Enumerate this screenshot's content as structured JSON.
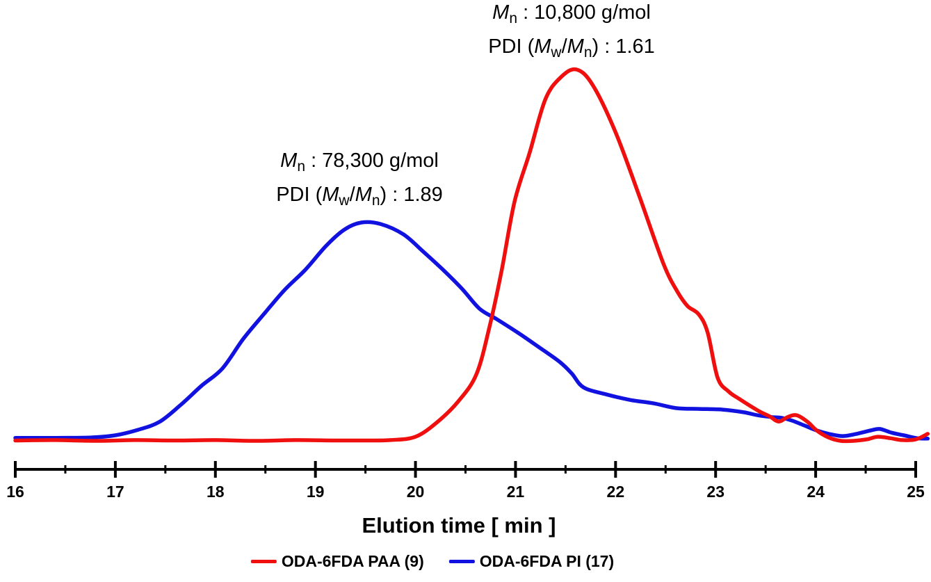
{
  "chart_data": {
    "type": "line",
    "title": "",
    "xlabel": "Elution time [ min ]",
    "ylabel": "",
    "grid": false,
    "legend_position": "bottom-center",
    "x_axis": {
      "min": 16,
      "max": 25,
      "major_ticks": [
        "16",
        "17",
        "18",
        "19",
        "20",
        "21",
        "22",
        "23",
        "24",
        "25"
      ],
      "minor_ticks": [
        16.5,
        17.5,
        18.5,
        19.5,
        20.5,
        21.5,
        22.5,
        23.5,
        24.5
      ]
    },
    "y_axis": {
      "visible": false,
      "note": "detector response, arbitrary units (normalized to PAA peak = 1)"
    },
    "series": [
      {
        "name": "ODA-6FDA PAA (9)",
        "color": "#f00f0f",
        "peak_elution_min": 21.6,
        "Mn": "10,800 g/mol",
        "PDI": "1.61",
        "points": [
          [
            16.0,
            0.001
          ],
          [
            16.4,
            0.002
          ],
          [
            16.8,
            0.0
          ],
          [
            17.2,
            0.002
          ],
          [
            17.6,
            0.001
          ],
          [
            18.0,
            0.002
          ],
          [
            18.4,
            0.0
          ],
          [
            18.8,
            0.002
          ],
          [
            19.2,
            0.001
          ],
          [
            19.5,
            0.001
          ],
          [
            19.75,
            0.002
          ],
          [
            20.0,
            0.011
          ],
          [
            20.22,
            0.051
          ],
          [
            20.43,
            0.107
          ],
          [
            20.61,
            0.18
          ],
          [
            20.74,
            0.307
          ],
          [
            20.86,
            0.457
          ],
          [
            20.99,
            0.644
          ],
          [
            21.14,
            0.775
          ],
          [
            21.3,
            0.921
          ],
          [
            21.46,
            0.981
          ],
          [
            21.61,
            1.0
          ],
          [
            21.77,
            0.959
          ],
          [
            22.0,
            0.831
          ],
          [
            22.24,
            0.657
          ],
          [
            22.48,
            0.476
          ],
          [
            22.62,
            0.401
          ],
          [
            22.72,
            0.363
          ],
          [
            22.83,
            0.341
          ],
          [
            22.92,
            0.292
          ],
          [
            23.02,
            0.17
          ],
          [
            23.13,
            0.133
          ],
          [
            23.23,
            0.114
          ],
          [
            23.42,
            0.082
          ],
          [
            23.54,
            0.066
          ],
          [
            23.63,
            0.052
          ],
          [
            23.72,
            0.064
          ],
          [
            23.81,
            0.069
          ],
          [
            23.92,
            0.051
          ],
          [
            24.01,
            0.028
          ],
          [
            24.13,
            0.009
          ],
          [
            24.25,
            0.0
          ],
          [
            24.38,
            0.0
          ],
          [
            24.51,
            0.004
          ],
          [
            24.62,
            0.011
          ],
          [
            24.75,
            0.007
          ],
          [
            24.86,
            0.002
          ],
          [
            25.0,
            0.004
          ],
          [
            25.12,
            0.019
          ]
        ]
      },
      {
        "name": "ODA-6FDA PI (17)",
        "color": "#1212e0",
        "peak_elution_min": 19.5,
        "Mn": "78,300 g/mol",
        "PDI": "1.89",
        "points": [
          [
            16.0,
            0.008
          ],
          [
            16.4,
            0.008
          ],
          [
            16.75,
            0.009
          ],
          [
            17.0,
            0.015
          ],
          [
            17.23,
            0.03
          ],
          [
            17.44,
            0.051
          ],
          [
            17.65,
            0.096
          ],
          [
            17.86,
            0.148
          ],
          [
            18.07,
            0.195
          ],
          [
            18.28,
            0.275
          ],
          [
            18.49,
            0.343
          ],
          [
            18.69,
            0.406
          ],
          [
            18.9,
            0.461
          ],
          [
            19.11,
            0.526
          ],
          [
            19.29,
            0.569
          ],
          [
            19.46,
            0.588
          ],
          [
            19.65,
            0.584
          ],
          [
            19.88,
            0.556
          ],
          [
            20.08,
            0.509
          ],
          [
            20.29,
            0.457
          ],
          [
            20.47,
            0.408
          ],
          [
            20.64,
            0.356
          ],
          [
            20.81,
            0.328
          ],
          [
            21.02,
            0.292
          ],
          [
            21.23,
            0.253
          ],
          [
            21.44,
            0.213
          ],
          [
            21.56,
            0.182
          ],
          [
            21.68,
            0.144
          ],
          [
            21.91,
            0.125
          ],
          [
            22.15,
            0.11
          ],
          [
            22.38,
            0.101
          ],
          [
            22.61,
            0.088
          ],
          [
            22.84,
            0.086
          ],
          [
            23.07,
            0.084
          ],
          [
            23.28,
            0.077
          ],
          [
            23.42,
            0.069
          ],
          [
            23.56,
            0.064
          ],
          [
            23.66,
            0.062
          ],
          [
            23.77,
            0.054
          ],
          [
            23.89,
            0.041
          ],
          [
            24.01,
            0.028
          ],
          [
            24.13,
            0.019
          ],
          [
            24.27,
            0.013
          ],
          [
            24.41,
            0.019
          ],
          [
            24.55,
            0.028
          ],
          [
            24.64,
            0.032
          ],
          [
            24.76,
            0.022
          ],
          [
            24.88,
            0.015
          ],
          [
            25.02,
            0.007
          ],
          [
            25.12,
            0.006
          ]
        ]
      }
    ]
  },
  "annotations": [
    {
      "for_series": "ODA-6FDA PAA (9)",
      "plain_text": "Mn : 10,800 g/mol\nPDI (Mw/Mn) : 1.61",
      "lines": [
        [
          {
            "i": "M"
          },
          {
            "s": "n"
          },
          {
            "t": " : 10,800 g/mol"
          }
        ],
        [
          {
            "t": "PDI ("
          },
          {
            "i": "M"
          },
          {
            "s": "w"
          },
          {
            "t": "/"
          },
          {
            "i": "M"
          },
          {
            "s": "n"
          },
          {
            "t": ") : 1.61"
          }
        ]
      ]
    },
    {
      "for_series": "ODA-6FDA PI (17)",
      "plain_text": "Mn : 78,300 g/mol\nPDI (Mw/Mn) : 1.89",
      "lines": [
        [
          {
            "i": "M"
          },
          {
            "s": "n"
          },
          {
            "t": " : 78,300 g/mol"
          }
        ],
        [
          {
            "t": "PDI ("
          },
          {
            "i": "M"
          },
          {
            "s": "w"
          },
          {
            "t": "/"
          },
          {
            "i": "M"
          },
          {
            "s": "n"
          },
          {
            "t": ") : 1.89"
          }
        ]
      ]
    }
  ],
  "legend": {
    "items": [
      {
        "label": "ODA-6FDA PAA (9)",
        "color": "#f00f0f"
      },
      {
        "label": "ODA-6FDA PI (17)",
        "color": "#1212e0"
      }
    ]
  }
}
